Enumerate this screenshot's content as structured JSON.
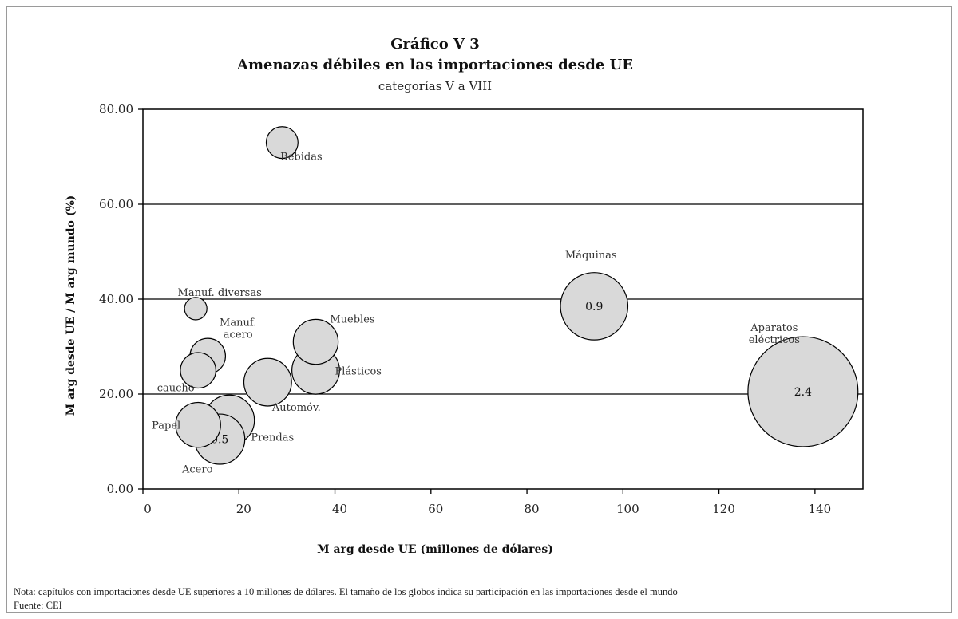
{
  "chart_data": {
    "type": "scatter",
    "title": "Gráfico V 3",
    "subtitle_bold": "Amenazas débiles en las importaciones desde UE",
    "subtitle": "categorías V a VIII",
    "xlabel": "M arg desde UE (millones de dólares)",
    "ylabel": "M arg desde UE / M arg mundo (%)",
    "xlim": [
      0,
      150
    ],
    "ylim": [
      0,
      80
    ],
    "x_ticks": [
      "0",
      "20",
      "40",
      "60",
      "80",
      "100",
      "120",
      "140"
    ],
    "x_tick_values": [
      0,
      20,
      40,
      60,
      80,
      100,
      120,
      140
    ],
    "y_ticks": [
      "0.00",
      "20.00",
      "40.00",
      "60.00",
      "80.00"
    ],
    "y_tick_values": [
      0,
      20,
      40,
      60,
      80
    ],
    "grid": "horizontal",
    "points": [
      {
        "label": "Bebidas",
        "x": 29,
        "y": 73,
        "size": 0.2
      },
      {
        "label": "Manuf. diversas",
        "x": 11,
        "y": 38,
        "size": 0.1
      },
      {
        "label": "Manuf. acero",
        "x": 13.5,
        "y": 28,
        "size": 0.25
      },
      {
        "label": "caucho",
        "x": 11.5,
        "y": 25,
        "size": 0.25
      },
      {
        "label": "Muebles",
        "x": 36,
        "y": 31,
        "size": 0.4
      },
      {
        "label": "Plásticos",
        "x": 36,
        "y": 25,
        "size": 0.45
      },
      {
        "label": "Automóv.",
        "x": 26,
        "y": 22.5,
        "size": 0.45
      },
      {
        "label": "Papel",
        "x": 11.5,
        "y": 13.5,
        "size": 0.4
      },
      {
        "label": "Prendas",
        "x": 18,
        "y": 14.5,
        "size": 0.5
      },
      {
        "label": "Acero",
        "x": 16,
        "y": 10.5,
        "size": 0.5,
        "value_label": "0.5"
      },
      {
        "label": "Máquinas",
        "x": 94,
        "y": 38.5,
        "size": 0.9,
        "value_label": "0.9"
      },
      {
        "label": "Aparatos eléctricos",
        "x": 137.5,
        "y": 20.5,
        "size": 2.4,
        "value_label": "2.4"
      }
    ]
  },
  "note": "Nota: capítulos con importaciones desde UE superiores a 10 millones de dólares. El tamaño de los globos indica su participación en las importaciones desde el mundo",
  "source": "Fuente: CEI",
  "colors": {
    "bubble_fill": "#d9d9d9",
    "bubble_stroke": "#000000",
    "grid": "#000000"
  }
}
